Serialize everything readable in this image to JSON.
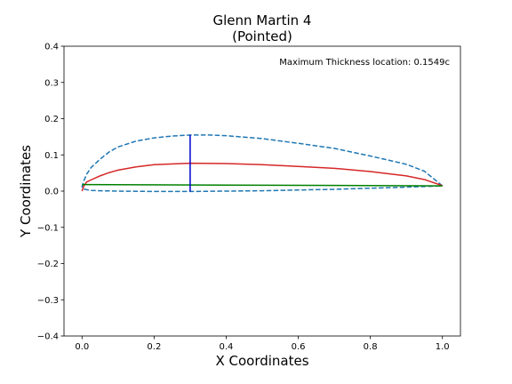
{
  "chart_data": {
    "type": "line",
    "title_line1": "Glenn Martin 4",
    "title_line2": "(Pointed)",
    "xlabel": "X Coordinates",
    "ylabel": "Y Coordinates",
    "xlim": [
      -0.05,
      1.05
    ],
    "ylim": [
      -0.4,
      0.4
    ],
    "grid": false,
    "annotation": "Maximum Thickness location: 0.1549c",
    "x_ticks": [
      {
        "value": 0.0,
        "label": "0.0"
      },
      {
        "value": 0.2,
        "label": "0.2"
      },
      {
        "value": 0.4,
        "label": "0.4"
      },
      {
        "value": 0.6,
        "label": "0.6"
      },
      {
        "value": 0.8,
        "label": "0.8"
      },
      {
        "value": 1.0,
        "label": "1.0"
      }
    ],
    "y_ticks": [
      {
        "value": 0.4,
        "label": "0.4"
      },
      {
        "value": 0.3,
        "label": "0.3"
      },
      {
        "value": 0.2,
        "label": "0.2"
      },
      {
        "value": 0.1,
        "label": "0.1"
      },
      {
        "value": 0.0,
        "label": "0.0"
      },
      {
        "value": -0.1,
        "label": "−0.1"
      },
      {
        "value": -0.2,
        "label": "−0.2"
      },
      {
        "value": -0.3,
        "label": "−0.3"
      },
      {
        "value": -0.4,
        "label": "−0.4"
      }
    ],
    "series": [
      {
        "color": "#1f77b4",
        "style": "dashed",
        "points": [
          [
            1.0,
            0.0145
          ],
          [
            0.95,
            0.055
          ],
          [
            0.9,
            0.074
          ],
          [
            0.8,
            0.097
          ],
          [
            0.7,
            0.118
          ],
          [
            0.6,
            0.132
          ],
          [
            0.5,
            0.145
          ],
          [
            0.4,
            0.153
          ],
          [
            0.35,
            0.155
          ],
          [
            0.3,
            0.155
          ],
          [
            0.25,
            0.152
          ],
          [
            0.2,
            0.147
          ],
          [
            0.15,
            0.138
          ],
          [
            0.1,
            0.122
          ],
          [
            0.075,
            0.108
          ],
          [
            0.05,
            0.088
          ],
          [
            0.025,
            0.065
          ],
          [
            0.0125,
            0.046
          ],
          [
            0.005,
            0.028
          ],
          [
            0.0,
            0.012
          ],
          [
            0.005,
            0.006
          ],
          [
            0.0125,
            0.004
          ],
          [
            0.025,
            0.002
          ],
          [
            0.05,
            0.001
          ],
          [
            0.1,
            0.0
          ],
          [
            0.2,
            -0.001
          ],
          [
            0.3,
            -0.001
          ],
          [
            0.4,
            0.0
          ],
          [
            0.5,
            0.001
          ],
          [
            0.6,
            0.003
          ],
          [
            0.7,
            0.005
          ],
          [
            0.8,
            0.008
          ],
          [
            0.9,
            0.011
          ],
          [
            1.0,
            0.0145
          ]
        ]
      },
      {
        "color": "#d62728",
        "style": "solid",
        "points": [
          [
            0.0,
            0.0
          ],
          [
            0.005,
            0.014
          ],
          [
            0.0125,
            0.025
          ],
          [
            0.025,
            0.031
          ],
          [
            0.05,
            0.042
          ],
          [
            0.075,
            0.051
          ],
          [
            0.1,
            0.058
          ],
          [
            0.15,
            0.067
          ],
          [
            0.2,
            0.073
          ],
          [
            0.3,
            0.077
          ],
          [
            0.4,
            0.076
          ],
          [
            0.5,
            0.073
          ],
          [
            0.6,
            0.068
          ],
          [
            0.7,
            0.063
          ],
          [
            0.8,
            0.054
          ],
          [
            0.9,
            0.042
          ],
          [
            0.95,
            0.032
          ],
          [
            1.0,
            0.015
          ]
        ]
      },
      {
        "color": "#008000",
        "style": "solid",
        "points": [
          [
            0.0,
            0.018
          ],
          [
            1.0,
            0.0145
          ]
        ]
      },
      {
        "color": "#0000cc",
        "style": "solid",
        "points": [
          [
            0.3,
            -0.001
          ],
          [
            0.3,
            0.155
          ]
        ]
      }
    ]
  }
}
